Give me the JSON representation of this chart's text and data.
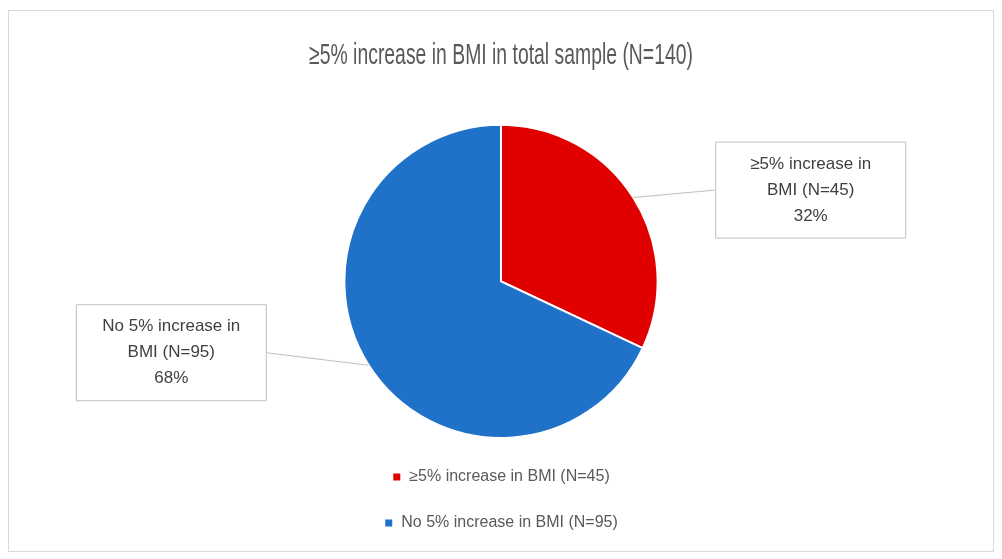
{
  "chart_data": {
    "type": "pie",
    "title": "≥5% increase in BMI in total sample (N=140)",
    "categories": [
      "≥5% increase in BMI (N=45)",
      "No 5% increase in BMI (N=95)"
    ],
    "values": [
      32,
      68
    ],
    "colors": [
      "#e00000",
      "#1f72c8"
    ],
    "value_labels": [
      "32%",
      "68%"
    ],
    "legend": "bottom"
  }
}
